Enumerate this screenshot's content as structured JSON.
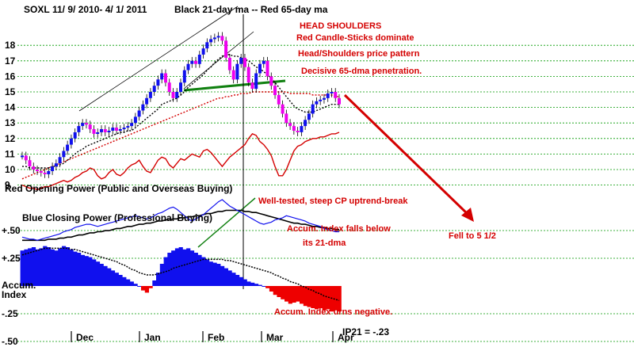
{
  "header": {
    "ticker": "SOXL",
    "date_range": "11/ 9/ 2010- 4/ 1/ 2011",
    "ma_legend": "Black 21-day ma --   Red 65-day ma"
  },
  "annotations": {
    "head_shoulders": "HEAD SHOULDERS",
    "red_candles": "Red Candle-Sticks dominate",
    "pattern": "Head/Shoulders price pattern",
    "penetration": "Decisive 65-dma penetration.",
    "cp_break": "Well-tested, steep CP uptrend-break",
    "accum_falls": "Accum. Index falls below",
    "accum_falls2": "its 21-dma",
    "fell_to": "Fell to 5 1/2",
    "accum_negative": "Accum. Index urns negative.",
    "ip21": "IP21 = -.23"
  },
  "panel_labels": {
    "opening_power": "Red Opening Power (Public and Overseas Buying)",
    "closing_power": "Blue Closing Power (Professional Buying)",
    "accum": "Accum.",
    "index": "Index"
  },
  "colors": {
    "price_up": "#1010ee",
    "price_down": "#ee00ee",
    "ma21": "#000000",
    "ma65": "#d40000",
    "opening_power": "#d40000",
    "closing_power": "#1010ee",
    "accum_pos": "#1010ee",
    "accum_neg": "#ee0000",
    "neckline": "#108010",
    "arrow": "#d40000",
    "grid": "#009900"
  },
  "chart_data": {
    "type": "candlestick",
    "x_months": [
      "Dec",
      "Jan",
      "Feb",
      "Mar",
      "Apr"
    ],
    "price_axis": {
      "ticks": [
        9,
        10,
        11,
        12,
        13,
        14,
        15,
        16,
        17,
        18
      ],
      "ylim": [
        9,
        18.8
      ]
    },
    "accum_axis": {
      "ticks": [
        "+.50",
        "+.25",
        "-.25",
        "-.50"
      ]
    },
    "price_close": [
      10.9,
      10.6,
      10.2,
      10.0,
      9.9,
      9.8,
      9.7,
      9.9,
      10.2,
      10.4,
      10.8,
      11.2,
      11.6,
      12.0,
      12.4,
      12.8,
      13.0,
      12.9,
      12.6,
      12.3,
      12.4,
      12.6,
      12.4,
      12.5,
      12.7,
      12.5,
      12.6,
      12.7,
      12.8,
      13.0,
      13.4,
      13.8,
      14.2,
      14.6,
      15.0,
      15.4,
      15.8,
      16.2,
      15.6,
      15.0,
      14.6,
      15.0,
      15.6,
      16.4,
      16.8,
      17.0,
      16.8,
      17.4,
      17.8,
      18.2,
      18.4,
      18.5,
      18.6,
      18.3,
      17.2,
      16.4,
      15.8,
      16.8,
      17.2,
      16.6,
      15.6,
      15.2,
      16.2,
      16.8,
      17.0,
      16.0,
      15.4,
      14.8,
      14.2,
      13.6,
      13.0,
      12.8,
      12.5,
      12.4,
      12.8,
      13.2,
      13.6,
      14.2,
      14.4,
      14.5,
      14.6,
      14.9,
      15.0,
      14.6,
      14.2
    ],
    "ma21": [
      10.2,
      10.2,
      10.1,
      10.1,
      10.1,
      10.1,
      10.1,
      10.1,
      10.2,
      10.2,
      10.3,
      10.4,
      10.6,
      10.8,
      11.0,
      11.2,
      11.3,
      11.5,
      11.6,
      11.7,
      11.8,
      11.9,
      12.0,
      12.1,
      12.2,
      12.3,
      12.4,
      12.4,
      12.5,
      12.5,
      12.7,
      12.9,
      13.1,
      13.3,
      13.5,
      13.7,
      13.9,
      14.2,
      14.3,
      14.4,
      14.5,
      14.6,
      14.8,
      15.0,
      15.3,
      15.5,
      15.7,
      15.9,
      16.1,
      16.4,
      16.6,
      16.9,
      17.1,
      17.3,
      17.4,
      17.4,
      17.3,
      17.3,
      17.2,
      17.1,
      17.0,
      16.8,
      16.6,
      16.5,
      16.3,
      16.1,
      15.9,
      15.6,
      15.3,
      15.0,
      14.7,
      14.4,
      14.1,
      13.9,
      13.8,
      13.7,
      13.7,
      13.7,
      13.8,
      13.9,
      14.0,
      14.1,
      14.2,
      14.2,
      14.2
    ],
    "ma65": [
      9.4,
      9.5,
      9.6,
      9.7,
      9.8,
      9.9,
      10.0,
      10.1,
      10.2,
      10.3,
      10.4,
      10.5,
      10.6,
      10.7,
      10.8,
      10.9,
      11.0,
      11.1,
      11.2,
      11.3,
      11.4,
      11.5,
      11.6,
      11.7,
      11.8,
      11.9,
      12.0,
      12.1,
      12.2,
      12.3,
      12.4,
      12.5,
      12.6,
      12.7,
      12.8,
      12.9,
      13.0,
      13.1,
      13.2,
      13.3,
      13.4,
      13.5,
      13.6,
      13.7,
      13.8,
      13.9,
      14.0,
      14.1,
      14.2,
      14.3,
      14.4,
      14.5,
      14.6,
      14.6,
      14.7,
      14.7,
      14.8,
      14.8,
      14.9,
      14.9,
      14.9,
      15.0,
      15.0,
      15.0,
      15.0,
      15.0,
      15.0,
      15.0,
      15.0,
      15.0,
      15.0,
      14.9,
      14.9,
      14.9,
      14.9,
      14.9,
      14.9,
      14.8,
      14.8,
      14.8,
      14.8,
      14.8,
      14.8,
      14.7,
      14.7
    ],
    "opening_power": [
      9.0,
      8.9,
      8.8,
      8.8,
      8.7,
      8.8,
      8.9,
      8.9,
      9.0,
      9.1,
      9.2,
      9.3,
      9.2,
      9.3,
      9.5,
      9.6,
      9.8,
      9.9,
      10.1,
      10.0,
      9.6,
      9.4,
      9.5,
      9.8,
      10.0,
      9.7,
      9.6,
      9.8,
      10.1,
      10.3,
      10.4,
      10.6,
      10.2,
      9.9,
      9.8,
      10.2,
      10.6,
      10.8,
      10.7,
      10.3,
      10.1,
      10.4,
      10.7,
      10.6,
      10.8,
      11.0,
      10.9,
      10.8,
      11.2,
      11.3,
      11.1,
      10.8,
      10.5,
      10.2,
      10.5,
      10.8,
      11.0,
      11.2,
      11.4,
      11.6,
      12.0,
      12.3,
      12.2,
      11.8,
      11.6,
      11.3,
      10.9,
      10.2,
      9.6,
      9.6,
      10.0,
      10.6,
      11.2,
      11.5,
      11.6,
      11.8,
      11.9,
      12.0,
      12.0,
      12.1,
      12.1,
      12.2,
      12.3,
      12.3,
      12.4
    ],
    "closing_power": [
      45,
      44,
      43,
      43,
      42,
      43,
      44,
      45,
      46,
      47,
      48,
      50,
      51,
      52,
      54,
      55,
      56,
      57,
      57,
      56,
      55,
      56,
      57,
      58,
      59,
      60,
      61,
      62,
      63,
      64,
      65,
      64,
      63,
      62,
      63,
      65,
      67,
      68,
      70,
      72,
      73,
      71,
      68,
      65,
      62,
      60,
      62,
      64,
      66,
      69,
      72,
      75,
      78,
      80,
      77,
      74,
      72,
      70,
      68,
      66,
      64,
      62,
      60,
      58,
      57,
      58,
      59,
      61,
      62,
      63,
      65,
      64,
      63,
      62,
      61,
      60,
      58,
      57,
      56,
      55,
      53,
      52,
      51,
      50,
      50
    ],
    "cp_ma21": [
      42,
      42,
      42,
      42,
      42,
      42,
      42,
      43,
      43,
      43,
      44,
      44,
      45,
      45,
      46,
      47,
      47,
      48,
      49,
      49,
      50,
      50,
      51,
      51,
      52,
      53,
      53,
      54,
      55,
      55,
      56,
      57,
      57,
      58,
      58,
      59,
      60,
      60,
      61,
      61,
      62,
      62,
      63,
      63,
      64,
      64,
      65,
      65,
      66,
      67,
      67,
      68,
      69,
      69,
      70,
      70,
      70,
      70,
      70,
      69,
      69,
      68,
      68,
      67,
      66,
      65,
      64,
      63,
      62,
      61,
      60,
      59,
      58,
      58,
      57,
      57,
      56,
      55,
      55,
      54,
      54,
      53,
      53,
      52,
      52
    ],
    "accum_index": [
      0.32,
      0.33,
      0.34,
      0.35,
      0.33,
      0.34,
      0.36,
      0.35,
      0.33,
      0.32,
      0.34,
      0.36,
      0.35,
      0.33,
      0.31,
      0.3,
      0.28,
      0.27,
      0.26,
      0.24,
      0.22,
      0.2,
      0.18,
      0.16,
      0.14,
      0.12,
      0.1,
      0.08,
      0.06,
      0.04,
      0.02,
      0.0,
      -0.04,
      -0.06,
      -0.02,
      0.05,
      0.12,
      0.2,
      0.26,
      0.3,
      0.32,
      0.34,
      0.35,
      0.33,
      0.34,
      0.32,
      0.3,
      0.28,
      0.26,
      0.24,
      0.22,
      0.21,
      0.2,
      0.18,
      0.16,
      0.14,
      0.12,
      0.1,
      0.08,
      0.06,
      0.04,
      0.03,
      0.02,
      0.01,
      0.0,
      -0.02,
      -0.05,
      -0.08,
      -0.1,
      -0.12,
      -0.14,
      -0.16,
      -0.15,
      -0.14,
      -0.16,
      -0.18,
      -0.19,
      -0.2,
      -0.21,
      -0.2,
      -0.22,
      -0.21,
      -0.23,
      -0.22,
      -0.23
    ],
    "accum_ma21": [
      0.28,
      0.29,
      0.3,
      0.31,
      0.32,
      0.33,
      0.34,
      0.34,
      0.34,
      0.34,
      0.34,
      0.34,
      0.34,
      0.33,
      0.33,
      0.32,
      0.31,
      0.3,
      0.29,
      0.28,
      0.27,
      0.26,
      0.25,
      0.24,
      0.23,
      0.22,
      0.2,
      0.19,
      0.17,
      0.15,
      0.14,
      0.12,
      0.11,
      0.1,
      0.1,
      0.1,
      0.11,
      0.12,
      0.13,
      0.14,
      0.16,
      0.17,
      0.18,
      0.19,
      0.2,
      0.21,
      0.22,
      0.23,
      0.24,
      0.24,
      0.24,
      0.24,
      0.24,
      0.24,
      0.23,
      0.23,
      0.22,
      0.21,
      0.2,
      0.19,
      0.18,
      0.17,
      0.16,
      0.15,
      0.14,
      0.13,
      0.12,
      0.1,
      0.09,
      0.07,
      0.06,
      0.04,
      0.03,
      0.02,
      0.0,
      -0.01,
      -0.03,
      -0.04,
      -0.06,
      -0.07,
      -0.09,
      -0.1,
      -0.11,
      -0.12,
      -0.13
    ]
  }
}
